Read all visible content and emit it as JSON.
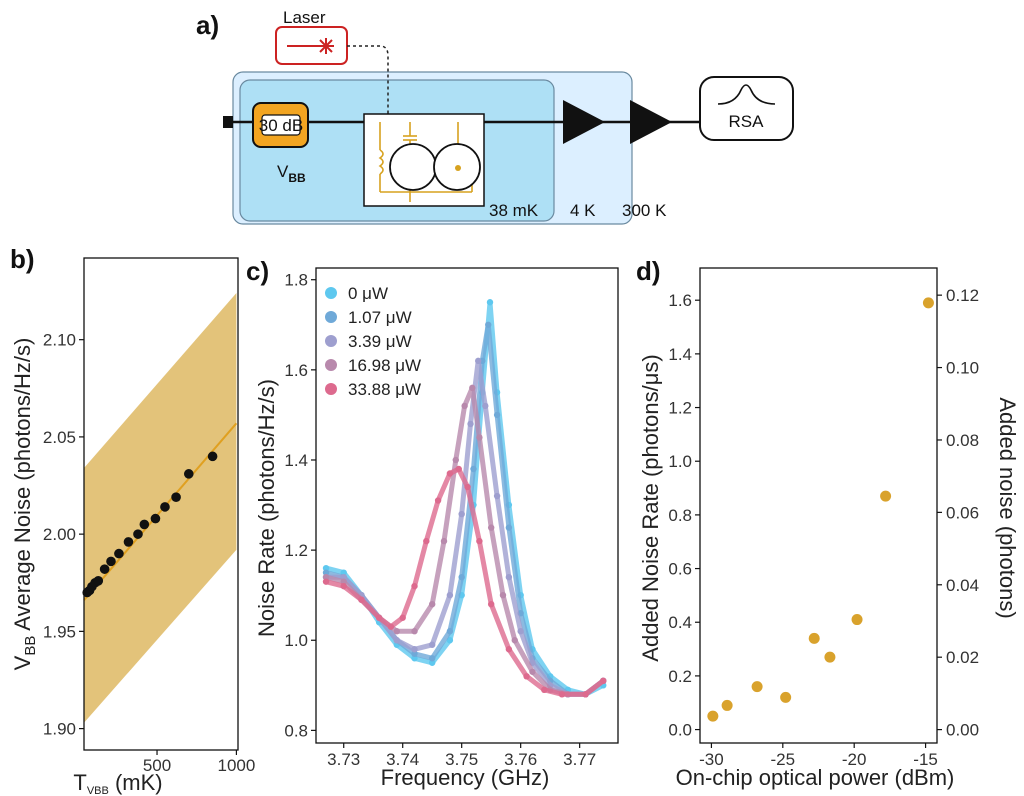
{
  "panel_labels": {
    "a": "a)",
    "b": "b)",
    "c": "c)",
    "d": "d)"
  },
  "schematic": {
    "laser_label": "Laser",
    "attenuator_label": "30 dB",
    "source_label_main": "V",
    "source_label_sub": "BB",
    "rsa_label": "RSA",
    "stage_labels": [
      "38 mK",
      "4 K",
      "300 K"
    ],
    "colors": {
      "fridge_outer": "#dcefff",
      "fridge_inner": "#aee0f5",
      "attenuator": "#f2a521",
      "laser": "#cc2222",
      "circuit": "#d7a21f"
    }
  },
  "chart_data": [
    {
      "id": "b",
      "type": "scatter",
      "title": "",
      "xlabel_main": "T",
      "xlabel_sub": "VBB",
      "xlabel_unit": " (mK)",
      "ylabel_main": "V",
      "ylabel_sub": "BB",
      "ylabel_rest": " Average Noise (photons/Hz/s)",
      "xlim": [
        40,
        1010
      ],
      "ylim": [
        1.889,
        2.142
      ],
      "xticks": [
        500,
        1000
      ],
      "yticks": [
        1.9,
        1.95,
        2.0,
        2.05,
        2.1
      ],
      "ytick_labels": [
        "1.90",
        "1.95",
        "2.00",
        "2.05",
        "2.10"
      ],
      "x": [
        60,
        75,
        90,
        110,
        130,
        170,
        210,
        260,
        320,
        380,
        420,
        490,
        550,
        620,
        700,
        850
      ],
      "y": [
        1.97,
        1.971,
        1.973,
        1.975,
        1.976,
        1.982,
        1.986,
        1.99,
        1.996,
        2.0,
        2.005,
        2.008,
        2.014,
        2.019,
        2.031,
        2.04
      ],
      "fit_line": {
        "x": [
          40,
          1000
        ],
        "y": [
          1.966,
          2.057
        ]
      },
      "band": {
        "x": [
          40,
          1000
        ],
        "upper": [
          2.034,
          2.124
        ],
        "lower": [
          1.903,
          1.992
        ]
      },
      "colors": {
        "points": "#111111",
        "fit": "#e0a020",
        "band": "#e0bd6c"
      }
    },
    {
      "id": "c",
      "type": "line",
      "title": "",
      "xlabel": "Frequency (GHz)",
      "ylabel": "Noise Rate (photons/Hz/s)",
      "xlim": [
        3.7253,
        3.7765
      ],
      "ylim": [
        0.772,
        1.826
      ],
      "xticks": [
        3.73,
        3.74,
        3.75,
        3.76,
        3.77
      ],
      "xtick_labels": [
        "3.73",
        "3.74",
        "3.75",
        "3.76",
        "3.77"
      ],
      "yticks": [
        0.8,
        1.0,
        1.2,
        1.4,
        1.6,
        1.8
      ],
      "ytick_labels": [
        "0.8",
        "1.0",
        "1.2",
        "1.4",
        "1.6",
        "1.8"
      ],
      "series": [
        {
          "name": "0 μW",
          "color": "#5ec8ef",
          "x": [
            3.727,
            3.73,
            3.733,
            3.736,
            3.739,
            3.742,
            3.745,
            3.748,
            3.75,
            3.752,
            3.7535,
            3.7548,
            3.756,
            3.758,
            3.76,
            3.762,
            3.765,
            3.768,
            3.771,
            3.774
          ],
          "y": [
            1.16,
            1.15,
            1.1,
            1.04,
            0.99,
            0.96,
            0.95,
            1.0,
            1.1,
            1.3,
            1.55,
            1.75,
            1.55,
            1.3,
            1.1,
            0.98,
            0.92,
            0.89,
            0.88,
            0.9
          ]
        },
        {
          "name": "1.07 μW",
          "color": "#6fa9d8",
          "x": [
            3.727,
            3.73,
            3.733,
            3.736,
            3.739,
            3.742,
            3.745,
            3.748,
            3.75,
            3.752,
            3.7535,
            3.7545,
            3.756,
            3.758,
            3.76,
            3.762,
            3.765,
            3.768,
            3.771,
            3.774
          ],
          "y": [
            1.15,
            1.14,
            1.1,
            1.05,
            1.0,
            0.97,
            0.96,
            1.02,
            1.14,
            1.38,
            1.62,
            1.7,
            1.5,
            1.25,
            1.06,
            0.96,
            0.91,
            0.88,
            0.88,
            0.91
          ]
        },
        {
          "name": "3.39 μW",
          "color": "#9e9fcf",
          "x": [
            3.727,
            3.73,
            3.733,
            3.736,
            3.739,
            3.742,
            3.745,
            3.748,
            3.75,
            3.7515,
            3.7528,
            3.754,
            3.756,
            3.758,
            3.76,
            3.762,
            3.765,
            3.768,
            3.771,
            3.774
          ],
          "y": [
            1.14,
            1.14,
            1.1,
            1.05,
            1.0,
            0.98,
            0.99,
            1.1,
            1.28,
            1.48,
            1.62,
            1.52,
            1.32,
            1.14,
            1.02,
            0.95,
            0.9,
            0.88,
            0.88,
            0.91
          ]
        },
        {
          "name": "16.98 μW",
          "color": "#b889ac",
          "x": [
            3.727,
            3.73,
            3.733,
            3.736,
            3.739,
            3.742,
            3.745,
            3.747,
            3.749,
            3.7505,
            3.7518,
            3.753,
            3.755,
            3.757,
            3.759,
            3.762,
            3.765,
            3.768,
            3.771,
            3.774
          ],
          "y": [
            1.14,
            1.13,
            1.09,
            1.05,
            1.02,
            1.02,
            1.08,
            1.22,
            1.4,
            1.52,
            1.56,
            1.45,
            1.25,
            1.1,
            1.0,
            0.93,
            0.89,
            0.88,
            0.88,
            0.91
          ]
        },
        {
          "name": "33.88 μW",
          "color": "#dd6a8e",
          "x": [
            3.727,
            3.73,
            3.733,
            3.736,
            3.738,
            3.74,
            3.742,
            3.744,
            3.746,
            3.748,
            3.7495,
            3.751,
            3.753,
            3.755,
            3.758,
            3.761,
            3.764,
            3.767,
            3.771,
            3.774
          ],
          "y": [
            1.13,
            1.12,
            1.09,
            1.05,
            1.03,
            1.05,
            1.12,
            1.22,
            1.31,
            1.37,
            1.38,
            1.34,
            1.22,
            1.08,
            0.98,
            0.92,
            0.89,
            0.88,
            0.88,
            0.91
          ]
        }
      ]
    },
    {
      "id": "d",
      "type": "scatter",
      "title": "",
      "xlabel": "On-chip optical power (dBm)",
      "ylabel": "Added Noise Rate (photons/μs)",
      "ylabel_right": "Added noise (photons)",
      "xlim": [
        -30.8,
        -14.2
      ],
      "ylim": [
        -0.05,
        1.72
      ],
      "xticks": [
        -30,
        -25,
        -20,
        -15
      ],
      "xtick_labels": [
        "-30",
        "-25",
        "-20",
        "-15"
      ],
      "yticks": [
        0.0,
        0.2,
        0.4,
        0.6,
        0.8,
        1.0,
        1.2,
        1.4,
        1.6
      ],
      "ytick_labels": [
        "0.0",
        "0.2",
        "0.4",
        "0.6",
        "0.8",
        "1.0",
        "1.2",
        "1.4",
        "1.6"
      ],
      "yticks_right": [
        0.0,
        0.02,
        0.04,
        0.06,
        0.08,
        0.1,
        0.12
      ],
      "ytick_labels_right": [
        "0.00",
        "0.02",
        "0.04",
        "0.06",
        "0.08",
        "0.10",
        "0.12"
      ],
      "right_ylim": [
        -0.0037,
        0.1275
      ],
      "x": [
        -29.9,
        -28.9,
        -26.8,
        -24.8,
        -22.8,
        -21.7,
        -19.8,
        -17.8,
        -14.8
      ],
      "y": [
        0.05,
        0.09,
        0.16,
        0.12,
        0.34,
        0.27,
        0.41,
        0.87,
        1.59
      ],
      "color": "#d9a22c"
    }
  ]
}
